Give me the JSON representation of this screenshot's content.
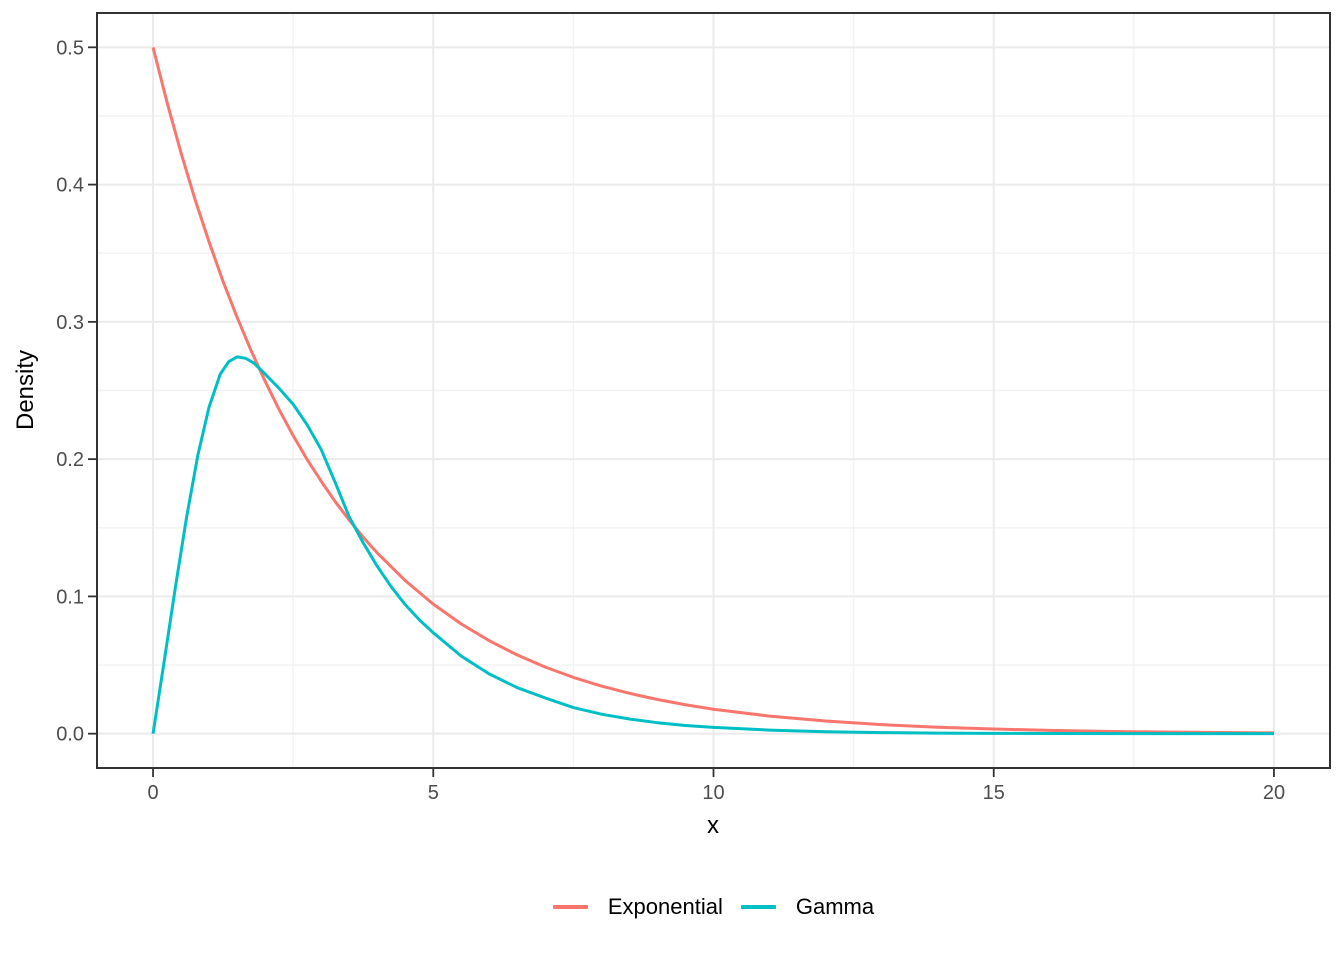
{
  "chart_data": {
    "type": "line",
    "title": "",
    "xlabel": "x",
    "ylabel": "Density",
    "xlim": [
      0,
      20
    ],
    "ylim": [
      0,
      0.5
    ],
    "expansion": 0.05,
    "x_major_ticks": [
      0,
      5,
      10,
      15,
      20
    ],
    "x_tick_labels": [
      "0",
      "5",
      "10",
      "15",
      "20"
    ],
    "x_minor_ticks": [
      2.5,
      7.5,
      12.5,
      17.5
    ],
    "y_major_ticks": [
      0,
      0.1,
      0.2,
      0.3,
      0.4,
      0.5
    ],
    "y_tick_labels": [
      "0.0",
      "0.1",
      "0.2",
      "0.3",
      "0.4",
      "0.5"
    ],
    "y_minor_ticks": [
      0.05,
      0.15,
      0.25,
      0.35,
      0.45
    ],
    "grid": "major+minor",
    "panel_border": true,
    "legend_position": "bottom",
    "colors": {
      "exponential": "#F8766D",
      "gamma": "#00BFC4",
      "axis_text": "#4D4D4D",
      "axis_title": "#000000",
      "grid_major": "#EBEBEB",
      "grid_minor": "#F2F2F2",
      "panel_border_color": "#333333",
      "tick_marks": "#333333",
      "background": "#FFFFFF"
    },
    "series": [
      {
        "name": "Exponential",
        "color": "#F8766D",
        "x": [
          0,
          0.25,
          0.5,
          0.75,
          1,
          1.25,
          1.5,
          1.75,
          2,
          2.25,
          2.5,
          2.75,
          3,
          3.25,
          3.5,
          3.75,
          4,
          4.5,
          5,
          5.5,
          6,
          6.5,
          7,
          7.5,
          8,
          8.5,
          9,
          9.5,
          10,
          11,
          12,
          13,
          14,
          15,
          16,
          17,
          18,
          19,
          20
        ],
        "y": [
          0.5,
          0.4599,
          0.423,
          0.3891,
          0.3582,
          0.3294,
          0.3033,
          0.279,
          0.2567,
          0.2361,
          0.2171,
          0.1997,
          0.1839,
          0.1691,
          0.1556,
          0.1431,
          0.1317,
          0.1115,
          0.0944,
          0.0799,
          0.0677,
          0.0573,
          0.0485,
          0.041,
          0.0347,
          0.0294,
          0.0249,
          0.0211,
          0.0178,
          0.0128,
          0.0092,
          0.0066,
          0.0047,
          0.0034,
          0.0024,
          0.0017,
          0.0012,
          0.0009,
          0.0006
        ]
      },
      {
        "name": "Gamma",
        "color": "#00BFC4",
        "x": [
          0,
          0.2,
          0.4,
          0.6,
          0.8,
          1,
          1.2,
          1.35,
          1.5,
          1.65,
          1.8,
          2,
          2.25,
          2.5,
          2.75,
          3,
          3.25,
          3.5,
          3.75,
          4,
          4.25,
          4.5,
          4.75,
          5,
          5.5,
          6,
          6.5,
          7,
          7.5,
          8,
          8.5,
          9,
          9.5,
          10,
          11,
          12,
          13,
          14,
          15,
          16,
          18,
          20
        ],
        "y": [
          0,
          0.053,
          0.107,
          0.158,
          0.203,
          0.238,
          0.262,
          0.271,
          0.2745,
          0.2735,
          0.27,
          0.262,
          0.2515,
          0.24,
          0.225,
          0.207,
          0.183,
          0.158,
          0.139,
          0.122,
          0.107,
          0.094,
          0.083,
          0.0735,
          0.0565,
          0.0435,
          0.0335,
          0.026,
          0.019,
          0.0142,
          0.0107,
          0.008,
          0.006,
          0.0046,
          0.0026,
          0.0014,
          0.0008,
          0.0004,
          0.00025,
          0.00015,
          6e-05,
          2e-05
        ]
      }
    ]
  }
}
